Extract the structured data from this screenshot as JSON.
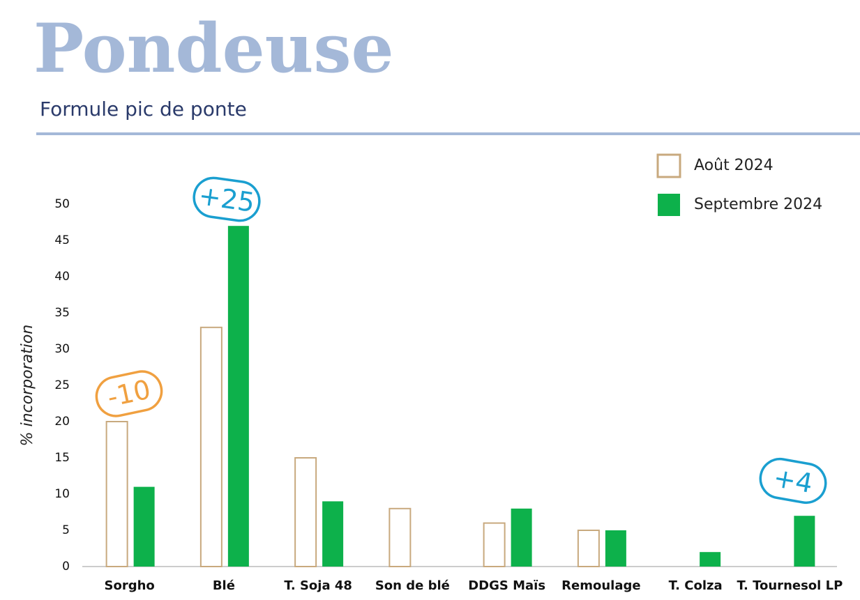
{
  "chart_data": {
    "type": "bar",
    "title": "Pondeuse",
    "subtitle": "Formule pic de ponte",
    "y_label": "% incorporation",
    "categories": [
      "Sorgho",
      "Blé",
      "T. Soja 48",
      "Son de blé",
      "DDGS Maïs",
      "Remoulage",
      "T. Colza",
      "T. Tournesol LP"
    ],
    "series": [
      {
        "name": "Août 2024",
        "color": "#c8a97e",
        "fill": "none",
        "values": [
          20,
          33,
          15,
          8,
          6,
          5,
          0,
          0
        ]
      },
      {
        "name": "Septembre 2024",
        "color": "#0db14b",
        "fill": "#0db14b",
        "values": [
          11,
          47,
          9,
          0,
          8,
          5,
          2,
          7
        ]
      }
    ],
    "ylim": [
      0,
      50
    ],
    "yticks": [
      0,
      5,
      10,
      15,
      20,
      25,
      30,
      35,
      40,
      45,
      50
    ],
    "grid": false,
    "legend": "top-right",
    "annotations": [
      {
        "text": "-10",
        "color": "#f0a040"
      },
      {
        "text": "+25",
        "color": "#1a9fd0"
      },
      {
        "text": "+4",
        "color": "#1a9fd0"
      }
    ]
  }
}
